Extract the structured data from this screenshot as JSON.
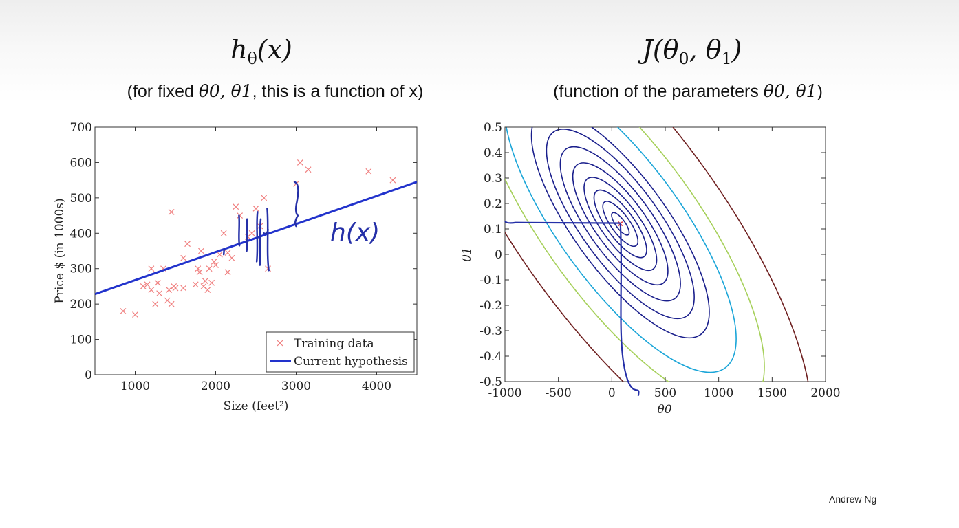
{
  "left": {
    "title": "hθ(x)",
    "subtitle_pre": "(for fixed ",
    "subtitle_math": "θ0, θ1",
    "subtitle_post": ", this is a function of x)",
    "annotation": "h(x)"
  },
  "right": {
    "title": "J(θ0, θ1)",
    "subtitle_pre": "(function of the parameters ",
    "subtitle_math": "θ0, θ1",
    "subtitle_post": ")"
  },
  "credit": "Andrew Ng",
  "chart_data": [
    {
      "type": "scatter",
      "xlabel": "Size (feet²)",
      "ylabel": "Price $ (in 1000s)",
      "xlim": [
        500,
        4500
      ],
      "ylim": [
        0,
        700
      ],
      "xticks": [
        "1000",
        "2000",
        "3000",
        "4000"
      ],
      "xtick_values": [
        1000,
        2000,
        3000,
        4000
      ],
      "yticks": [
        "0",
        "100",
        "200",
        "300",
        "400",
        "500",
        "600",
        "700"
      ],
      "ytick_values": [
        0,
        100,
        200,
        300,
        400,
        500,
        600,
        700
      ],
      "legend_position": "bottom-right",
      "series": [
        {
          "name": "Training data",
          "color": "#f08080",
          "marker": "x",
          "points": [
            [
              850,
              180
            ],
            [
              1000,
              170
            ],
            [
              1100,
              250
            ],
            [
              1150,
              255
            ],
            [
              1200,
              240
            ],
            [
              1200,
              300
            ],
            [
              1250,
              200
            ],
            [
              1280,
              260
            ],
            [
              1300,
              230
            ],
            [
              1350,
              300
            ],
            [
              1400,
              210
            ],
            [
              1420,
              240
            ],
            [
              1450,
              200
            ],
            [
              1450,
              460
            ],
            [
              1480,
              250
            ],
            [
              1500,
              245
            ],
            [
              1600,
              245
            ],
            [
              1600,
              330
            ],
            [
              1650,
              370
            ],
            [
              1750,
              255
            ],
            [
              1780,
              300
            ],
            [
              1800,
              290
            ],
            [
              1820,
              350
            ],
            [
              1850,
              250
            ],
            [
              1870,
              265
            ],
            [
              1900,
              240
            ],
            [
              1920,
              300
            ],
            [
              1950,
              260
            ],
            [
              1980,
              320
            ],
            [
              2000,
              310
            ],
            [
              2050,
              340
            ],
            [
              2100,
              400
            ],
            [
              2150,
              290
            ],
            [
              2150,
              345
            ],
            [
              2200,
              330
            ],
            [
              2250,
              475
            ],
            [
              2300,
              450
            ],
            [
              2400,
              390
            ],
            [
              2450,
              400
            ],
            [
              2500,
              470
            ],
            [
              2550,
              420
            ],
            [
              2600,
              500
            ],
            [
              2650,
              300
            ],
            [
              3000,
              540
            ],
            [
              3050,
              600
            ],
            [
              3150,
              580
            ],
            [
              3900,
              575
            ],
            [
              4200,
              550
            ]
          ]
        },
        {
          "name": "Current hypothesis",
          "color": "#2233cc",
          "type": "line",
          "points": [
            [
              500,
              228
            ],
            [
              4500,
              545
            ]
          ]
        }
      ]
    },
    {
      "type": "contour",
      "xlabel": "θ0",
      "ylabel": "θ1",
      "xlim": [
        -1000,
        2000
      ],
      "ylim": [
        -0.5,
        0.5
      ],
      "xticks": [
        "-1000",
        "-500",
        "0",
        "500",
        "1000",
        "1500",
        "2000"
      ],
      "xtick_values": [
        -1000,
        -500,
        0,
        500,
        1000,
        1500,
        2000
      ],
      "yticks": [
        "-0.5",
        "-0.4",
        "-0.3",
        "-0.2",
        "-0.1",
        "0",
        "0.1",
        "0.2",
        "0.3",
        "0.4",
        "0.5"
      ],
      "ytick_values": [
        -0.5,
        -0.4,
        -0.3,
        -0.2,
        -0.1,
        0,
        0.1,
        0.2,
        0.3,
        0.4,
        0.5
      ],
      "minimum": [
        80,
        0.12
      ],
      "level_colors": [
        "#1a1f8c",
        "#1a1f8c",
        "#1a1f8c",
        "#1a1f8c",
        "#1a1f8c",
        "#1a1f8c",
        "#1a1f8c",
        "#1a1f8c",
        "#1aa5d8",
        "#a6d05a",
        "#6e1f1f"
      ]
    }
  ]
}
